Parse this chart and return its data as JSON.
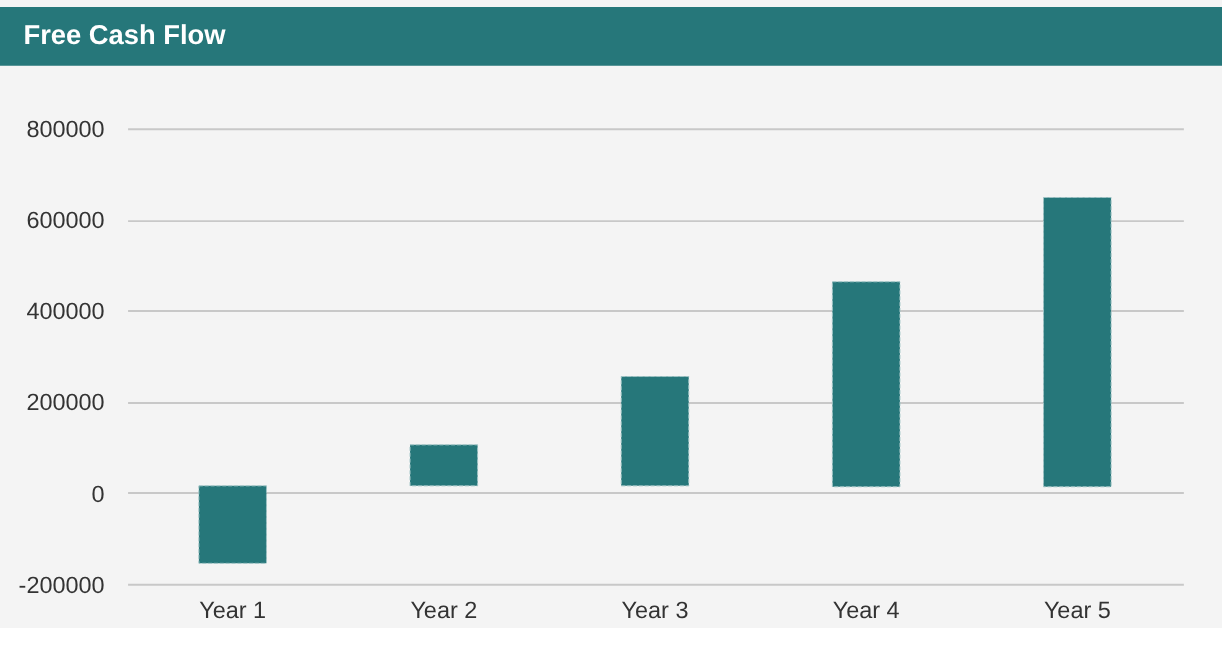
{
  "chart_data": {
    "type": "bar",
    "title": "Free Cash Flow",
    "categories": [
      "Year 1",
      "Year 2",
      "Year 3",
      "Year 4",
      "Year 5"
    ],
    "base": [
      -155000,
      15000,
      15000,
      13000,
      13000
    ],
    "values": [
      170000,
      90000,
      240000,
      450000,
      635000
    ],
    "color": "#26777a",
    "ylim": [
      -200000,
      800000
    ],
    "yticks": [
      -200000,
      0,
      200000,
      400000,
      600000,
      800000
    ],
    "grid": "y"
  }
}
